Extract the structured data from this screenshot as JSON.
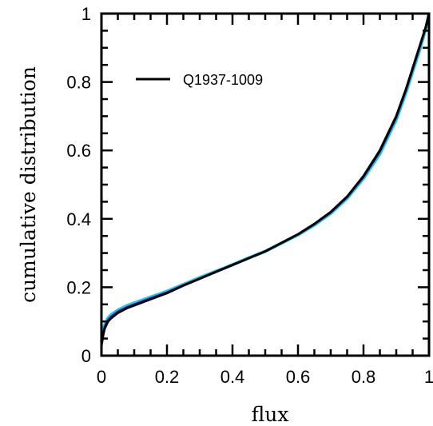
{
  "chart_data": {
    "type": "line",
    "xlabel": "flux",
    "ylabel": "cumulative distribution",
    "xlim": [
      0,
      1
    ],
    "ylim": [
      0,
      1
    ],
    "grid": false,
    "legend_position": "top-left",
    "x_ticks": [
      "0",
      "0.2",
      "0.4",
      "0.6",
      "0.8",
      "1"
    ],
    "y_ticks": [
      "0",
      "0.2",
      "0.4",
      "0.6",
      "0.8",
      "1"
    ],
    "series": [
      {
        "name": "Q1937-1009",
        "color": "#000000",
        "x": [
          0.0,
          0.005,
          0.01,
          0.02,
          0.03,
          0.05,
          0.08,
          0.1,
          0.15,
          0.2,
          0.25,
          0.3,
          0.35,
          0.4,
          0.45,
          0.5,
          0.55,
          0.6,
          0.65,
          0.7,
          0.75,
          0.8,
          0.85,
          0.9,
          0.93,
          0.95,
          0.97,
          0.99,
          1.0
        ],
        "y": [
          0.03,
          0.06,
          0.08,
          0.1,
          0.11,
          0.125,
          0.14,
          0.147,
          0.165,
          0.183,
          0.205,
          0.225,
          0.245,
          0.265,
          0.285,
          0.305,
          0.33,
          0.355,
          0.385,
          0.42,
          0.465,
          0.525,
          0.6,
          0.7,
          0.78,
          0.84,
          0.9,
          0.96,
          1.0
        ]
      },
      {
        "name": "",
        "color": "#1ec8e6",
        "x": [
          0.0,
          0.005,
          0.01,
          0.02,
          0.03,
          0.05,
          0.08,
          0.1,
          0.15,
          0.2,
          0.25,
          0.3,
          0.35,
          0.4,
          0.45,
          0.5,
          0.55,
          0.6,
          0.65,
          0.7,
          0.75,
          0.8,
          0.85,
          0.9,
          0.93,
          0.95,
          0.97,
          0.99,
          1.0
        ],
        "y": [
          0.04,
          0.07,
          0.09,
          0.11,
          0.12,
          0.133,
          0.147,
          0.154,
          0.171,
          0.188,
          0.208,
          0.228,
          0.247,
          0.266,
          0.286,
          0.305,
          0.329,
          0.353,
          0.382,
          0.416,
          0.46,
          0.518,
          0.59,
          0.69,
          0.77,
          0.83,
          0.89,
          0.955,
          1.0
        ]
      },
      {
        "name": "",
        "color": "#2030c0",
        "x": [
          0.0,
          0.005,
          0.01,
          0.02,
          0.03,
          0.05,
          0.08,
          0.1,
          0.15,
          0.2,
          0.25,
          0.3,
          0.35,
          0.4,
          0.45,
          0.5,
          0.55,
          0.6,
          0.65,
          0.7,
          0.75,
          0.8,
          0.85,
          0.9,
          0.93,
          0.95,
          0.97,
          0.99,
          1.0
        ],
        "y": [
          0.035,
          0.065,
          0.085,
          0.105,
          0.115,
          0.129,
          0.143,
          0.15,
          0.168,
          0.185,
          0.206,
          0.226,
          0.246,
          0.266,
          0.285,
          0.305,
          0.33,
          0.354,
          0.384,
          0.418,
          0.463,
          0.522,
          0.596,
          0.696,
          0.776,
          0.836,
          0.896,
          0.958,
          1.0
        ]
      }
    ]
  }
}
